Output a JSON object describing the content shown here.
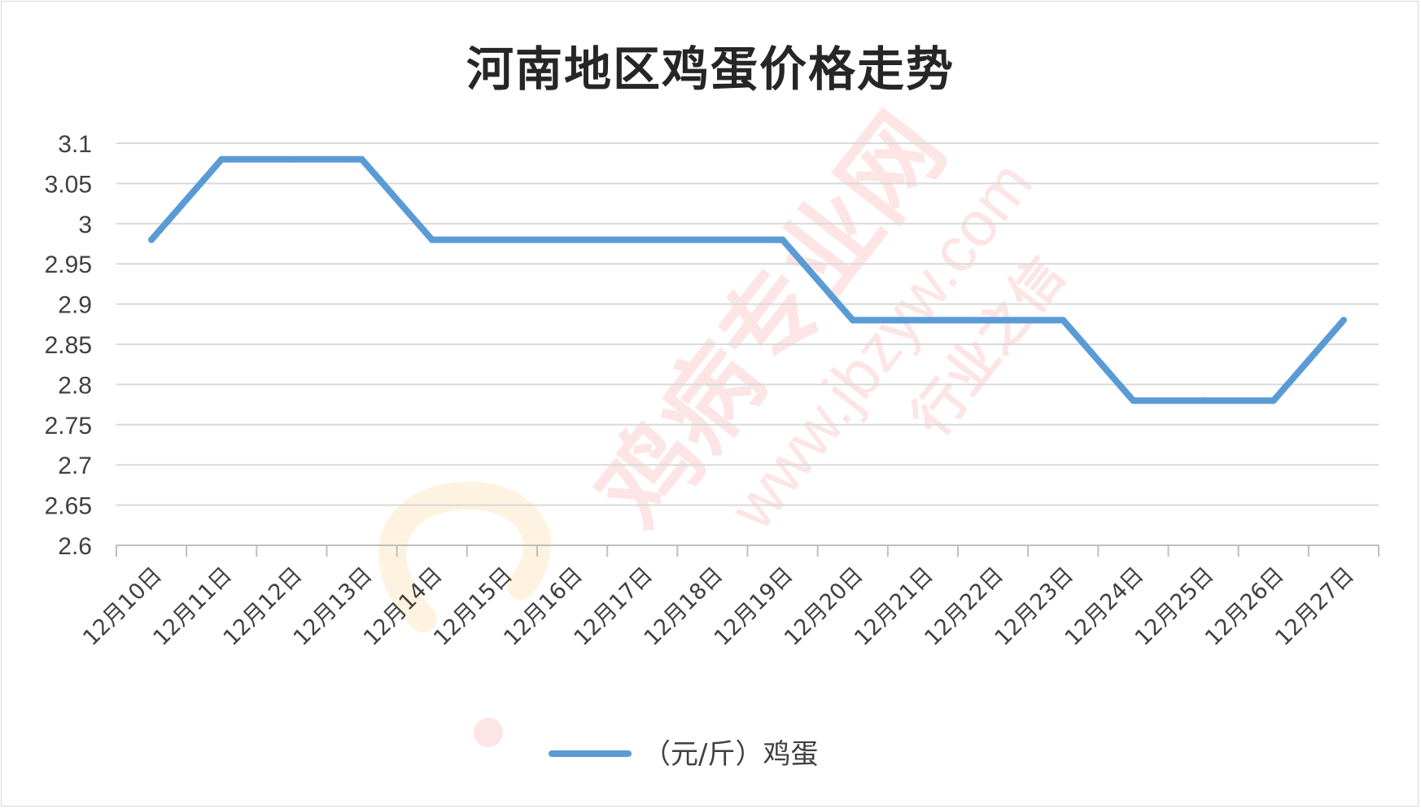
{
  "chart_data": {
    "type": "line",
    "title": "河南地区鸡蛋价格走势",
    "categories": [
      "12月10日",
      "12月11日",
      "12月12日",
      "12月13日",
      "12月14日",
      "12月15日",
      "12月16日",
      "12月17日",
      "12月18日",
      "12月19日",
      "12月20日",
      "12月21日",
      "12月22日",
      "12月23日",
      "12月24日",
      "12月25日",
      "12月26日",
      "12月27日"
    ],
    "series": [
      {
        "name": "（元/斤）鸡蛋",
        "color": "#5b9bd5",
        "values": [
          2.98,
          3.08,
          3.08,
          3.08,
          2.98,
          2.98,
          2.98,
          2.98,
          2.98,
          2.98,
          2.88,
          2.88,
          2.88,
          2.88,
          2.78,
          2.78,
          2.78,
          2.88
        ]
      }
    ],
    "ylim": [
      2.6,
      3.1
    ],
    "yticks": [
      "2.6",
      "2.65",
      "2.7",
      "2.75",
      "2.8",
      "2.85",
      "2.9",
      "2.95",
      "3",
      "3.05",
      "3.1"
    ],
    "grid": true,
    "legend_position": "bottom"
  },
  "watermark": {
    "text": "鸡病专业网",
    "url": "www.jbzyw.com",
    "slogan": "行业之信",
    "color": "#e8463c"
  }
}
